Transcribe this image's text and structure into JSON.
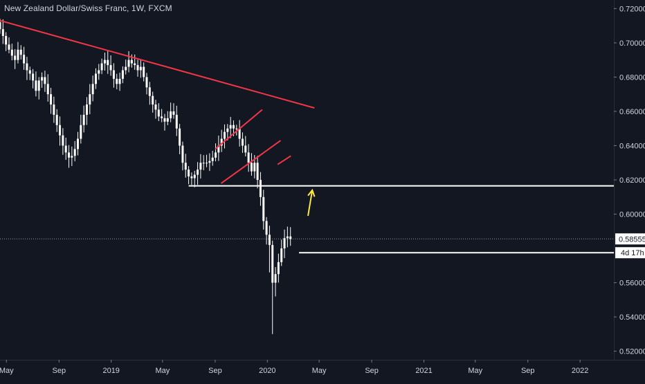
{
  "chart_data": {
    "type": "candlestick",
    "title": "New Zealand Dollar/Swiss Franc, 1W, FXCM",
    "y_ticks": [
      0.72,
      0.7,
      0.68,
      0.66,
      0.64,
      0.62,
      0.6,
      0.56,
      0.54,
      0.52
    ],
    "y_tick_labels": [
      "0.72000",
      "0.70000",
      "0.68000",
      "0.66000",
      "0.64000",
      "0.62000",
      "0.60000",
      "0.56000",
      "0.54000",
      "0.52000"
    ],
    "ylim": [
      0.515,
      0.725
    ],
    "x_range": [
      "2018-04-16",
      "2022-03-21"
    ],
    "x_ticks": [
      {
        "date": "2018-05-01",
        "label": "May"
      },
      {
        "date": "2018-09-01",
        "label": "Sep"
      },
      {
        "date": "2019-01-01",
        "label": "2019"
      },
      {
        "date": "2019-05-01",
        "label": "May"
      },
      {
        "date": "2019-09-01",
        "label": "Sep"
      },
      {
        "date": "2020-01-01",
        "label": "2020"
      },
      {
        "date": "2020-05-01",
        "label": "May"
      },
      {
        "date": "2020-09-01",
        "label": "Sep"
      },
      {
        "date": "2021-01-01",
        "label": "2021"
      },
      {
        "date": "2021-05-01",
        "label": "May"
      },
      {
        "date": "2021-09-01",
        "label": "Sep"
      },
      {
        "date": "2022-01-01",
        "label": "2022"
      }
    ],
    "last_price": {
      "value": 0.58555,
      "label": "0.58555"
    },
    "countdown": {
      "value": 0.5775,
      "label": "4d 17h"
    },
    "closes": [
      0.708,
      0.704,
      0.699,
      0.696,
      0.6925,
      0.69,
      0.696,
      0.693,
      0.688,
      0.684,
      0.682,
      0.678,
      0.672,
      0.678,
      0.68,
      0.676,
      0.67,
      0.664,
      0.658,
      0.652,
      0.646,
      0.64,
      0.636,
      0.633,
      0.634,
      0.638,
      0.644,
      0.652,
      0.658,
      0.664,
      0.67,
      0.676,
      0.682,
      0.684,
      0.688,
      0.69,
      0.687,
      0.684,
      0.679,
      0.676,
      0.679,
      0.684,
      0.686,
      0.69,
      0.688,
      0.687,
      0.684,
      0.686,
      0.68,
      0.674,
      0.669,
      0.664,
      0.661,
      0.657,
      0.656,
      0.654,
      0.656,
      0.66,
      0.658,
      0.65,
      0.64,
      0.63,
      0.626,
      0.622,
      0.621,
      0.623,
      0.626,
      0.63,
      0.63,
      0.63,
      0.631,
      0.633,
      0.636,
      0.64,
      0.644,
      0.648,
      0.65,
      0.652,
      0.65,
      0.65,
      0.644,
      0.64,
      0.636,
      0.63,
      0.625,
      0.63,
      0.62,
      0.61,
      0.596,
      0.588,
      0.582,
      0.56,
      0.565,
      0.572,
      0.58,
      0.586,
      0.587,
      0.5855
    ],
    "trendlines": [
      {
        "name": "downtrend",
        "color": "#f23645",
        "from": {
          "date": "2018-04-16",
          "value": 0.713
        },
        "to": {
          "date": "2020-04-20",
          "value": 0.662
        }
      },
      {
        "name": "channel-upper",
        "color": "#f23645",
        "from": {
          "date": "2019-09-01",
          "value": 0.638
        },
        "to": {
          "date": "2019-12-20",
          "value": 0.661
        }
      },
      {
        "name": "channel-lower",
        "color": "#f23645",
        "from": {
          "date": "2019-09-15",
          "value": 0.618
        },
        "to": {
          "date": "2020-02-01",
          "value": 0.643
        }
      },
      {
        "name": "retest",
        "color": "#f23645",
        "from": {
          "date": "2020-01-25",
          "value": 0.629
        },
        "to": {
          "date": "2020-02-25",
          "value": 0.634
        }
      }
    ],
    "horizontal_levels": [
      {
        "name": "support-level",
        "value": 0.6165,
        "from": "2019-07-01",
        "color": "#ffffff"
      },
      {
        "name": "resistance-level",
        "value": 0.5775,
        "from": "2020-03-15",
        "color": "#ffffff"
      }
    ],
    "arrow": {
      "color": "#ffeb3b",
      "from": {
        "date": "2020-04-05",
        "value": 0.599
      },
      "to": {
        "date": "2020-04-15",
        "value": 0.614
      }
    },
    "colors": {
      "background": "#131722",
      "candle": "#ffffff",
      "axis_text": "#d1d4dc"
    }
  }
}
